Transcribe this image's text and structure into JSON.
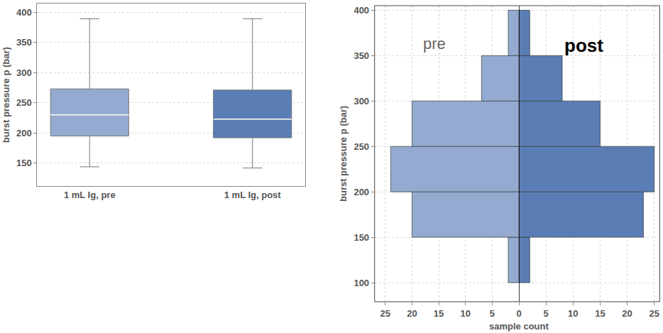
{
  "chart_data": [
    {
      "type": "box",
      "ylabel": "burst pressure p (bar)",
      "categories": [
        "1 mL Ig, pre",
        "1 mL Ig, post"
      ],
      "stats": {
        "min": [
          144,
          142
        ],
        "q1": [
          195,
          192
        ],
        "median": [
          230,
          223
        ],
        "q3": [
          273,
          271
        ],
        "max": [
          389,
          389
        ]
      },
      "colors": [
        "#94aad0",
        "#5a7db5"
      ],
      "ylim": [
        112,
        414
      ],
      "yticks": [
        150,
        200,
        250,
        300,
        350,
        400
      ],
      "grid": true
    },
    {
      "type": "histogram",
      "orientation": "horizontal",
      "ylabel": "burst pressure p (bar)",
      "xlabel": "sample count",
      "bins": [
        100,
        150,
        200,
        250,
        300,
        350,
        400
      ],
      "ylim": [
        79,
        405
      ],
      "yticks": [
        100,
        150,
        200,
        250,
        300,
        350,
        400
      ],
      "grid": true,
      "series": [
        {
          "name": "pre",
          "color": "#94aad0",
          "values": [
            2,
            20,
            24,
            20,
            7,
            2
          ],
          "xlim": [
            27,
            0
          ],
          "xticks": [
            25,
            20,
            15,
            10,
            5,
            0
          ]
        },
        {
          "name": "post",
          "color": "#5a7db5",
          "values": [
            2,
            23,
            25,
            15,
            8,
            2
          ],
          "xlim": [
            0,
            26
          ],
          "xticks": [
            5,
            10,
            15,
            20,
            25
          ]
        }
      ]
    }
  ]
}
